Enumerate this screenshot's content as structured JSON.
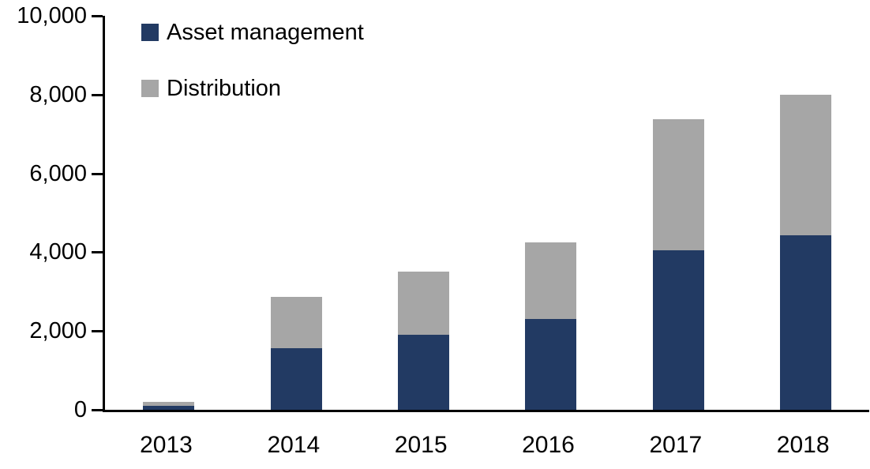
{
  "chart_data": {
    "type": "bar",
    "stacked": true,
    "title": "",
    "xlabel": "",
    "ylabel": "",
    "categories": [
      "2013",
      "2014",
      "2015",
      "2016",
      "2017",
      "2018"
    ],
    "series": [
      {
        "name": "Asset management",
        "color": "#223A63",
        "values": [
          100,
          1560,
          1900,
          2300,
          4050,
          4420
        ]
      },
      {
        "name": "Distribution",
        "color": "#A6A6A6",
        "values": [
          100,
          1300,
          1600,
          1950,
          3330,
          3580
        ]
      }
    ],
    "totals": [
      200,
      2860,
      3500,
      4250,
      7380,
      8000
    ],
    "ylim": [
      0,
      10000
    ],
    "ytick_values": [
      0,
      2000,
      4000,
      6000,
      8000,
      10000
    ],
    "ytick_labels": [
      "0",
      "2,000",
      "4,000",
      "6,000",
      "8,000",
      "10,000"
    ],
    "grid": false,
    "legend_position": "top-left",
    "axis_color": "#000000",
    "text_color": "#000000",
    "background_color": "#FFFFFF"
  }
}
